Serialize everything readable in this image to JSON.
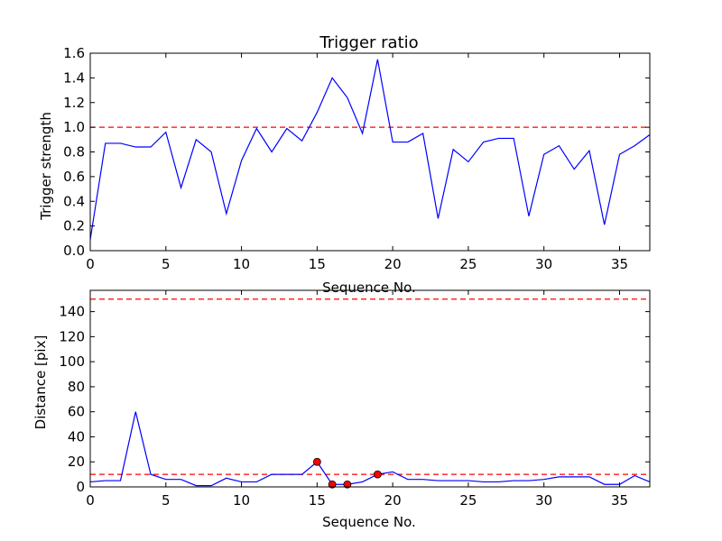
{
  "chart_data": [
    {
      "type": "line",
      "title": "Trigger ratio",
      "xlabel": "Sequence No.",
      "ylabel": "Trigger strength",
      "xlim": [
        0,
        37
      ],
      "ylim": [
        0,
        1.6
      ],
      "xticks": [
        0,
        5,
        10,
        15,
        20,
        25,
        30,
        35
      ],
      "yticks": [
        0.0,
        0.2,
        0.4,
        0.6,
        0.8,
        1.0,
        1.2,
        1.4,
        1.6
      ],
      "ytick_labels": [
        "0.0",
        "0.2",
        "0.4",
        "0.6",
        "0.8",
        "1.0",
        "1.2",
        "1.4",
        "1.6"
      ],
      "grid": false,
      "series": [
        {
          "color": "#0000ff",
          "x": [
            0,
            1,
            2,
            3,
            4,
            5,
            6,
            7,
            8,
            9,
            10,
            11,
            12,
            13,
            14,
            15,
            16,
            17,
            18,
            19,
            20,
            21,
            22,
            23,
            24,
            25,
            26,
            27,
            28,
            29,
            30,
            31,
            32,
            33,
            34,
            35,
            36,
            37
          ],
          "y": [
            0.09,
            0.87,
            0.87,
            0.84,
            0.84,
            0.96,
            0.51,
            0.9,
            0.8,
            0.3,
            0.73,
            0.99,
            0.8,
            0.99,
            0.89,
            1.12,
            1.4,
            1.24,
            0.95,
            1.55,
            0.88,
            0.88,
            0.95,
            0.26,
            0.82,
            0.72,
            0.88,
            0.91,
            0.91,
            0.28,
            0.78,
            0.85,
            0.66,
            0.81,
            0.21,
            0.78,
            0.85,
            0.94
          ]
        }
      ],
      "reference_lines": [
        {
          "y": 1.0,
          "color": "#ff0000",
          "style": "dashed"
        }
      ]
    },
    {
      "type": "line",
      "title": "",
      "xlabel": "Sequence No.",
      "ylabel": "Distance [pix]",
      "xlim": [
        0,
        37
      ],
      "ylim": [
        0,
        157
      ],
      "xticks": [
        0,
        5,
        10,
        15,
        20,
        25,
        30,
        35
      ],
      "yticks": [
        0,
        20,
        40,
        60,
        80,
        100,
        120,
        140
      ],
      "grid": false,
      "series": [
        {
          "color": "#0000ff",
          "x": [
            0,
            1,
            2,
            3,
            4,
            5,
            6,
            7,
            8,
            9,
            10,
            11,
            12,
            13,
            14,
            15,
            16,
            17,
            18,
            19,
            20,
            21,
            22,
            23,
            24,
            25,
            26,
            27,
            28,
            29,
            30,
            31,
            32,
            33,
            34,
            35,
            36,
            37
          ],
          "y": [
            4,
            5,
            5,
            60,
            10,
            6,
            6,
            1,
            1,
            7,
            4,
            4,
            10,
            10,
            10,
            20,
            2,
            2,
            4,
            10,
            12,
            6,
            6,
            5,
            5,
            5,
            4,
            4,
            5,
            5,
            6,
            8,
            8,
            8,
            2,
            2,
            9,
            4
          ]
        }
      ],
      "markers": {
        "color": "#ff0000",
        "x": [
          15,
          16,
          17,
          19
        ],
        "y": [
          20,
          2,
          2,
          10
        ]
      },
      "reference_lines": [
        {
          "y": 150,
          "color": "#ff0000",
          "style": "dashed"
        },
        {
          "y": 10,
          "color": "#ff0000",
          "style": "dashed"
        }
      ]
    }
  ]
}
